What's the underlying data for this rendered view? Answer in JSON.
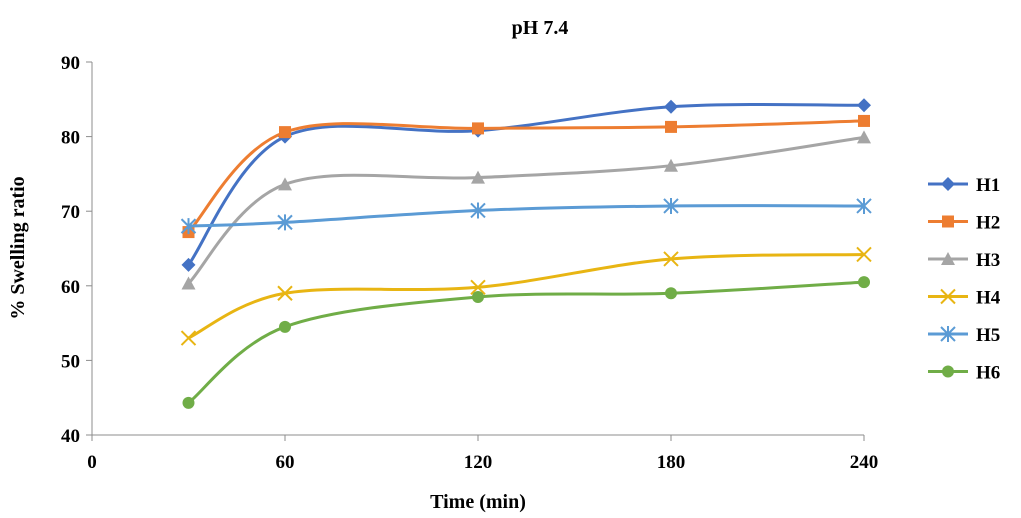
{
  "chart_data": {
    "type": "line",
    "title": "pH 7.4",
    "xlabel": "Time (min)",
    "ylabel": "% Swelling ratio",
    "xlim": [
      0,
      240
    ],
    "ylim": [
      40,
      90
    ],
    "xticks": [
      0,
      60,
      120,
      180,
      240
    ],
    "yticks": [
      40,
      50,
      60,
      70,
      80,
      90
    ],
    "grid": false,
    "legend_position": "right",
    "smooth": true,
    "x": [
      30,
      60,
      120,
      180,
      240
    ],
    "series": [
      {
        "name": "H1",
        "color": "#4472C4",
        "marker": "diamond",
        "values": [
          62.8,
          80.0,
          80.8,
          84.0,
          84.2
        ]
      },
      {
        "name": "H2",
        "color": "#ED7D31",
        "marker": "square",
        "values": [
          67.2,
          80.6,
          81.1,
          81.3,
          82.1
        ]
      },
      {
        "name": "H3",
        "color": "#A5A5A5",
        "marker": "triangle",
        "values": [
          60.3,
          73.6,
          74.5,
          76.1,
          79.9
        ]
      },
      {
        "name": "H4",
        "color": "#E8B513",
        "marker": "x",
        "values": [
          53.0,
          59.0,
          59.8,
          63.6,
          64.2
        ]
      },
      {
        "name": "H5",
        "color": "#5B9BD5",
        "marker": "asterisk",
        "values": [
          68.0,
          68.5,
          70.1,
          70.7,
          70.7
        ]
      },
      {
        "name": "H6",
        "color": "#70AD47",
        "marker": "circle",
        "values": [
          44.3,
          54.5,
          58.5,
          59.0,
          60.5
        ]
      }
    ]
  }
}
